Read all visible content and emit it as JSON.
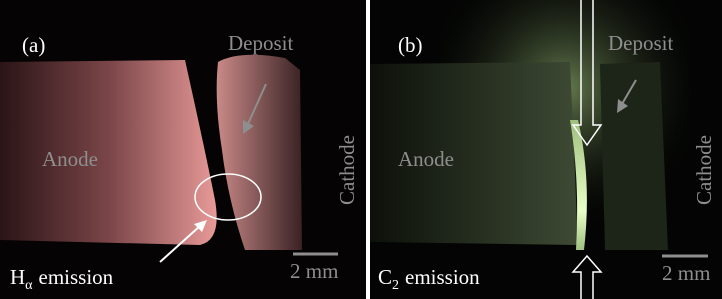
{
  "panels": [
    {
      "label": "(a)",
      "deposit": "Deposit",
      "anode": "Anode",
      "cathode": "Cathode",
      "emission": {
        "symbol": "H",
        "subscript": "α",
        "text": "emission"
      },
      "scale_bar": "2 mm"
    },
    {
      "label": "(b)",
      "deposit": "Deposit",
      "anode": "Anode",
      "cathode": "Cathode",
      "emission": {
        "symbol": "C",
        "subscript": "2",
        "text": "emission"
      },
      "scale_bar": "2 mm"
    }
  ]
}
